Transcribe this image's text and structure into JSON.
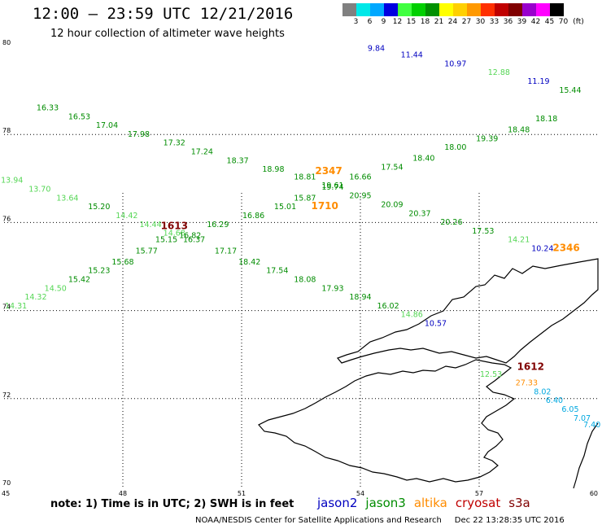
{
  "header": {
    "title": "12:00 – 23:59 UTC 12/21/2016",
    "subtitle": "12 hour collection of altimeter wave heights"
  },
  "color_legend": {
    "unit": "(ft)",
    "bins": [
      {
        "label": "3",
        "color": "#808080"
      },
      {
        "label": "6",
        "color": "#00e8e8"
      },
      {
        "label": "9",
        "color": "#00a8ff"
      },
      {
        "label": "12",
        "color": "#0000e0"
      },
      {
        "label": "15",
        "color": "#40ff40"
      },
      {
        "label": "18",
        "color": "#00d000"
      },
      {
        "label": "21",
        "color": "#009000"
      },
      {
        "label": "24",
        "color": "#ffff00"
      },
      {
        "label": "27",
        "color": "#ffd000"
      },
      {
        "label": "30",
        "color": "#ff9900"
      },
      {
        "label": "33",
        "color": "#ff3000"
      },
      {
        "label": "36",
        "color": "#c00000"
      },
      {
        "label": "39",
        "color": "#800000"
      },
      {
        "label": "42",
        "color": "#9900cc"
      },
      {
        "label": "45",
        "color": "#ff00ff"
      },
      {
        "label": "70",
        "color": "#000000"
      }
    ]
  },
  "axes": {
    "lat_ticks": [
      "80",
      "78",
      "76",
      "74",
      "72",
      "70"
    ],
    "lon_ticks": [
      "45",
      "48",
      "51",
      "54",
      "57",
      "60"
    ],
    "lat_range": [
      70,
      80
    ],
    "lon_range": [
      45,
      60
    ]
  },
  "colors": {
    "jason2": "#0000c0",
    "jason3": "#008c00",
    "jason3_light": "#55d655",
    "altika": "#ff8c00",
    "cryosat": "#c00000",
    "s3a": "#800000",
    "cyan": "#00a8e0"
  },
  "observations": [
    {
      "v": "9.84",
      "lon": 54.4,
      "lat": 79.9,
      "c": "jason2"
    },
    {
      "v": "11.44",
      "lon": 55.3,
      "lat": 79.75,
      "c": "jason2"
    },
    {
      "v": "10.97",
      "lon": 56.4,
      "lat": 79.55,
      "c": "jason2"
    },
    {
      "v": "12.88",
      "lon": 57.5,
      "lat": 79.35,
      "c": "jason3_light"
    },
    {
      "v": "11.19",
      "lon": 58.5,
      "lat": 79.15,
      "c": "jason2"
    },
    {
      "v": "15.44",
      "lon": 59.3,
      "lat": 78.95,
      "c": "jason3"
    },
    {
      "v": "16.33",
      "lon": 46.1,
      "lat": 78.55,
      "c": "jason3"
    },
    {
      "v": "16.53",
      "lon": 46.9,
      "lat": 78.35,
      "c": "jason3"
    },
    {
      "v": "17.04",
      "lon": 47.6,
      "lat": 78.15,
      "c": "jason3"
    },
    {
      "v": "17.98",
      "lon": 48.4,
      "lat": 77.95,
      "c": "jason3"
    },
    {
      "v": "17.32",
      "lon": 49.3,
      "lat": 77.75,
      "c": "jason3"
    },
    {
      "v": "17.24",
      "lon": 50.0,
      "lat": 77.55,
      "c": "jason3"
    },
    {
      "v": "18.37",
      "lon": 50.9,
      "lat": 77.35,
      "c": "jason3"
    },
    {
      "v": "18.98",
      "lon": 51.8,
      "lat": 77.15,
      "c": "jason3"
    },
    {
      "v": "18.81",
      "lon": 52.6,
      "lat": 76.98,
      "c": "jason3"
    },
    {
      "v": "19.61",
      "lon": 53.3,
      "lat": 76.78,
      "c": "jason3"
    },
    {
      "v": "16.66",
      "lon": 54.0,
      "lat": 76.98,
      "c": "jason3"
    },
    {
      "v": "17.54",
      "lon": 54.8,
      "lat": 77.2,
      "c": "jason3"
    },
    {
      "v": "18.40",
      "lon": 55.6,
      "lat": 77.4,
      "c": "jason3"
    },
    {
      "v": "18.00",
      "lon": 56.4,
      "lat": 77.65,
      "c": "jason3"
    },
    {
      "v": "19.39",
      "lon": 57.2,
      "lat": 77.85,
      "c": "jason3"
    },
    {
      "v": "18.48",
      "lon": 58.0,
      "lat": 78.05,
      "c": "jason3"
    },
    {
      "v": "18.18",
      "lon": 58.7,
      "lat": 78.3,
      "c": "jason3"
    },
    {
      "v": "13.94",
      "lon": 45.2,
      "lat": 76.9,
      "c": "jason3_light"
    },
    {
      "v": "13.70",
      "lon": 45.9,
      "lat": 76.7,
      "c": "jason3_light"
    },
    {
      "v": "13.64",
      "lon": 46.6,
      "lat": 76.5,
      "c": "jason3_light"
    },
    {
      "v": "15.20",
      "lon": 47.4,
      "lat": 76.3,
      "c": "jason3"
    },
    {
      "v": "14.42",
      "lon": 48.1,
      "lat": 76.1,
      "c": "jason3_light"
    },
    {
      "v": "14.44",
      "lon": 48.7,
      "lat": 75.9,
      "c": "jason3_light"
    },
    {
      "v": "14.68",
      "lon": 49.3,
      "lat": 75.7,
      "c": "jason3_light"
    },
    {
      "v": "16.82",
      "lon": 49.7,
      "lat": 75.65,
      "c": "jason3"
    },
    {
      "v": "16.29",
      "lon": 50.4,
      "lat": 75.9,
      "c": "jason3"
    },
    {
      "v": "16.86",
      "lon": 51.3,
      "lat": 76.1,
      "c": "jason3"
    },
    {
      "v": "15.01",
      "lon": 52.1,
      "lat": 76.3,
      "c": "jason3"
    },
    {
      "v": "15.87",
      "lon": 52.6,
      "lat": 76.5,
      "c": "jason3"
    },
    {
      "v": "19.74",
      "lon": 53.3,
      "lat": 76.75,
      "c": "jason3"
    },
    {
      "v": "20.95",
      "lon": 54.0,
      "lat": 76.55,
      "c": "jason3"
    },
    {
      "v": "20.09",
      "lon": 54.8,
      "lat": 76.35,
      "c": "jason3"
    },
    {
      "v": "20.37",
      "lon": 55.5,
      "lat": 76.15,
      "c": "jason3"
    },
    {
      "v": "20.26",
      "lon": 56.3,
      "lat": 75.95,
      "c": "jason3"
    },
    {
      "v": "17.53",
      "lon": 57.1,
      "lat": 75.75,
      "c": "jason3"
    },
    {
      "v": "14.21",
      "lon": 58.0,
      "lat": 75.55,
      "c": "jason3_light"
    },
    {
      "v": "15.15",
      "lon": 49.1,
      "lat": 75.55,
      "c": "jason3"
    },
    {
      "v": "16.37",
      "lon": 49.8,
      "lat": 75.55,
      "c": "jason3"
    },
    {
      "v": "15.77",
      "lon": 48.6,
      "lat": 75.3,
      "c": "jason3"
    },
    {
      "v": "17.17",
      "lon": 50.6,
      "lat": 75.3,
      "c": "jason3"
    },
    {
      "v": "15.68",
      "lon": 48.0,
      "lat": 75.05,
      "c": "jason3"
    },
    {
      "v": "18.42",
      "lon": 51.2,
      "lat": 75.05,
      "c": "jason3"
    },
    {
      "v": "15.23",
      "lon": 47.4,
      "lat": 74.85,
      "c": "jason3"
    },
    {
      "v": "17.54",
      "lon": 51.9,
      "lat": 74.85,
      "c": "jason3"
    },
    {
      "v": "15.42",
      "lon": 46.9,
      "lat": 74.65,
      "c": "jason3"
    },
    {
      "v": "18.08",
      "lon": 52.6,
      "lat": 74.65,
      "c": "jason3"
    },
    {
      "v": "14.50",
      "lon": 46.3,
      "lat": 74.45,
      "c": "jason3_light"
    },
    {
      "v": "17.93",
      "lon": 53.3,
      "lat": 74.45,
      "c": "jason3"
    },
    {
      "v": "14.32",
      "lon": 45.8,
      "lat": 74.25,
      "c": "jason3_light"
    },
    {
      "v": "18.94",
      "lon": 54.0,
      "lat": 74.25,
      "c": "jason3"
    },
    {
      "v": "14.31",
      "lon": 45.3,
      "lat": 74.05,
      "c": "jason3_light"
    },
    {
      "v": "16.02",
      "lon": 54.7,
      "lat": 74.05,
      "c": "jason3"
    },
    {
      "v": "14.86",
      "lon": 55.3,
      "lat": 73.85,
      "c": "jason3_light"
    },
    {
      "v": "10.57",
      "lon": 55.9,
      "lat": 73.65,
      "c": "jason2"
    },
    {
      "v": "10.24",
      "lon": 58.6,
      "lat": 75.35,
      "c": "jason2"
    },
    {
      "v": "12.53",
      "lon": 57.3,
      "lat": 72.5,
      "c": "jason3_light"
    },
    {
      "v": "27.33",
      "lon": 58.2,
      "lat": 72.3,
      "c": "altika"
    },
    {
      "v": "8.02",
      "lon": 58.6,
      "lat": 72.1,
      "c": "cyan"
    },
    {
      "v": "6.40",
      "lon": 58.9,
      "lat": 71.9,
      "c": "cyan"
    },
    {
      "v": "6.05",
      "lon": 59.3,
      "lat": 71.7,
      "c": "cyan"
    },
    {
      "v": "7.07",
      "lon": 59.6,
      "lat": 71.5,
      "c": "cyan"
    },
    {
      "v": "7.40",
      "lon": 59.85,
      "lat": 71.35,
      "c": "cyan"
    }
  ],
  "track_times": [
    {
      "v": "1613",
      "lon": 49.3,
      "lat": 75.85,
      "c": "s3a"
    },
    {
      "v": "2347",
      "lon": 53.2,
      "lat": 77.1,
      "c": "altika"
    },
    {
      "v": "1710",
      "lon": 53.1,
      "lat": 76.3,
      "c": "altika"
    },
    {
      "v": "2346",
      "lon": 59.2,
      "lat": 75.35,
      "c": "altika"
    },
    {
      "v": "1612",
      "lon": 58.3,
      "lat": 72.65,
      "c": "s3a"
    }
  ],
  "footer": {
    "note": "note:  1) Time is in UTC;  2) SWH is in feet",
    "satellites": [
      {
        "name": "jason2",
        "color": "#0000c0"
      },
      {
        "name": "jason3",
        "color": "#008c00"
      },
      {
        "name": "altika",
        "color": "#ff8c00"
      },
      {
        "name": "cryosat",
        "color": "#c00000"
      },
      {
        "name": "s3a",
        "color": "#800000"
      }
    ],
    "credit": "NOAA/NESDIS Center for Satellite Applications and Research     Dec 22 13:28:35 UTC 2016"
  }
}
